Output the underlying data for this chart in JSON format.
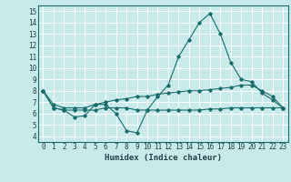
{
  "xlabel": "Humidex (Indice chaleur)",
  "ylabel": "",
  "bg_color": "#c8eaea",
  "grid_color": "#ffffff",
  "line_color": "#1a6b6b",
  "xlim": [
    -0.5,
    23.5
  ],
  "ylim": [
    3.5,
    15.5
  ],
  "xticks": [
    0,
    1,
    2,
    3,
    4,
    5,
    6,
    7,
    8,
    9,
    10,
    11,
    12,
    13,
    14,
    15,
    16,
    17,
    18,
    19,
    20,
    21,
    22,
    23
  ],
  "yticks": [
    4,
    5,
    6,
    7,
    8,
    9,
    10,
    11,
    12,
    13,
    14,
    15
  ],
  "line1_x": [
    0,
    1,
    2,
    3,
    4,
    5,
    6,
    7,
    8,
    9,
    10,
    11,
    12,
    13,
    14,
    15,
    16,
    17,
    18,
    19,
    20,
    21,
    22,
    23
  ],
  "line1_y": [
    8.0,
    6.5,
    6.3,
    5.7,
    5.8,
    6.8,
    6.8,
    6.0,
    4.5,
    4.3,
    6.3,
    7.5,
    8.5,
    11.0,
    12.5,
    14.0,
    14.8,
    13.0,
    10.5,
    9.0,
    8.8,
    7.8,
    7.2,
    6.5
  ],
  "line2_x": [
    0,
    1,
    2,
    3,
    4,
    5,
    6,
    7,
    8,
    9,
    10,
    11,
    12,
    13,
    14,
    15,
    16,
    17,
    18,
    19,
    20,
    21,
    22,
    23
  ],
  "line2_y": [
    8.0,
    6.8,
    6.5,
    6.5,
    6.5,
    6.8,
    7.0,
    7.2,
    7.3,
    7.5,
    7.5,
    7.7,
    7.8,
    7.9,
    8.0,
    8.0,
    8.1,
    8.2,
    8.3,
    8.5,
    8.5,
    8.0,
    7.5,
    6.5
  ],
  "line3_x": [
    0,
    1,
    2,
    3,
    4,
    5,
    6,
    7,
    8,
    9,
    10,
    11,
    12,
    13,
    14,
    15,
    16,
    17,
    18,
    19,
    20,
    21,
    22,
    23
  ],
  "line3_y": [
    8.0,
    6.5,
    6.3,
    6.3,
    6.3,
    6.3,
    6.5,
    6.5,
    6.5,
    6.3,
    6.3,
    6.3,
    6.3,
    6.3,
    6.3,
    6.3,
    6.4,
    6.4,
    6.5,
    6.5,
    6.5,
    6.5,
    6.5,
    6.5
  ]
}
